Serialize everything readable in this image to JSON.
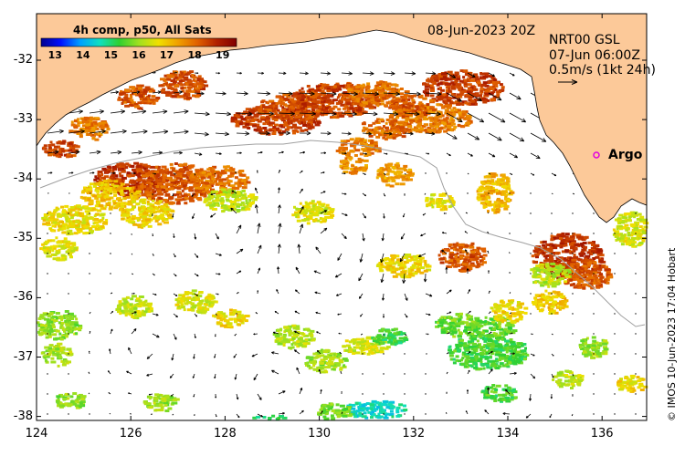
{
  "map": {
    "date_label": "08-Jun-2023 20Z",
    "current_source": "NRT00 GSL",
    "current_date": "07-Jun 06:00Z",
    "scale_label": "0.5m/s (1kt 24h)",
    "credit": "© IMOS 10-Jun-2023 17:04 Hobart",
    "float_label": "Argo",
    "colorbar": {
      "title": "4h comp, p50, All Sats",
      "min": 12.5,
      "max": 19.5,
      "tick_labels": [
        "13",
        "14",
        "15",
        "16",
        "17",
        "18",
        "19"
      ],
      "colors": [
        "#00008f",
        "#0010ff",
        "#00a0ff",
        "#10e0c0",
        "#30d030",
        "#a0e020",
        "#f0e000",
        "#f0a000",
        "#e06000",
        "#b02000",
        "#800000"
      ]
    },
    "lon_ticks": [
      "124",
      "126",
      "128",
      "130",
      "132",
      "134",
      "136"
    ],
    "lat_ticks": [
      "-32",
      "-33",
      "-34",
      "-35",
      "-36",
      "-37",
      "-38"
    ],
    "land_color": "#fcc999"
  }
}
